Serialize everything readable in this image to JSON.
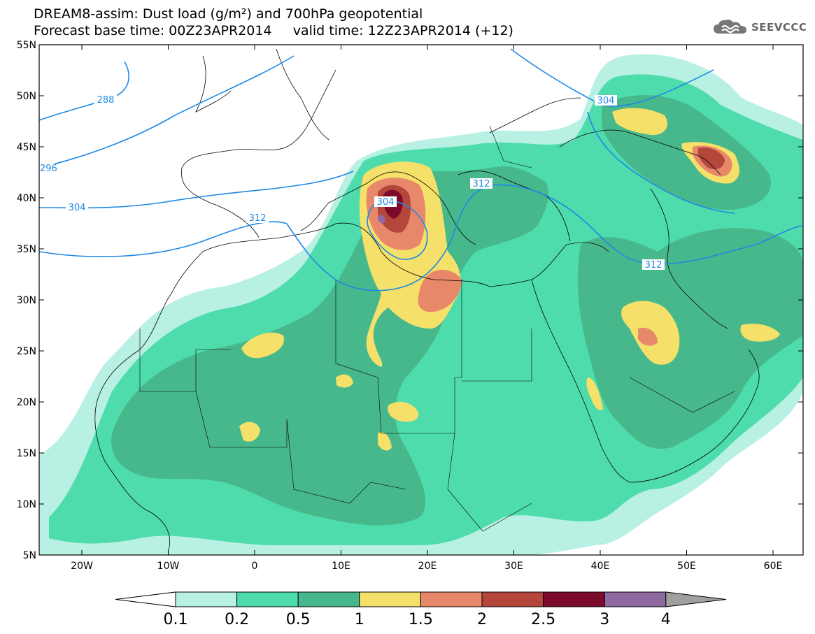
{
  "header": {
    "title_line1": "DREAM8-assim: Dust load (g/m²) and 700hPa geopotential",
    "title_line2": "Forecast base time: 00Z23APR2014     valid time: 12Z23APR2014 (+12)"
  },
  "logo": {
    "text": "SEEVCCC",
    "icon": "cloud-logo-icon"
  },
  "map": {
    "lat_labels": [
      "55N",
      "50N",
      "45N",
      "40N",
      "35N",
      "30N",
      "25N",
      "20N",
      "15N",
      "10N",
      "5N"
    ],
    "lon_labels": [
      "20W",
      "10W",
      "0",
      "10E",
      "20E",
      "30E",
      "40E",
      "50E",
      "60E"
    ],
    "contour_labels": [
      "288",
      "296",
      "304",
      "312",
      "304",
      "312",
      "304",
      "312"
    ]
  },
  "legend": {
    "labels": [
      "0.1",
      "0.2",
      "0.5",
      "1",
      "1.5",
      "2",
      "2.5",
      "3",
      "4"
    ],
    "colors": [
      "#ffffff",
      "#b9f0e4",
      "#4fdcac",
      "#47b88c",
      "#f5e06a",
      "#e8886a",
      "#b4463c",
      "#7c0a2a",
      "#8e6aa0",
      "#a0a0a0"
    ]
  },
  "colors": {
    "contour": "#1e88e5",
    "dust_0_1": "#b9f0e4",
    "dust_0_2": "#4fdcac",
    "dust_0_5": "#47b88c",
    "dust_1": "#f5e06a",
    "dust_1_5": "#e8886a",
    "dust_2": "#b4463c",
    "dust_2_5": "#7c0a2a",
    "dust_3": "#8e6aa0"
  }
}
